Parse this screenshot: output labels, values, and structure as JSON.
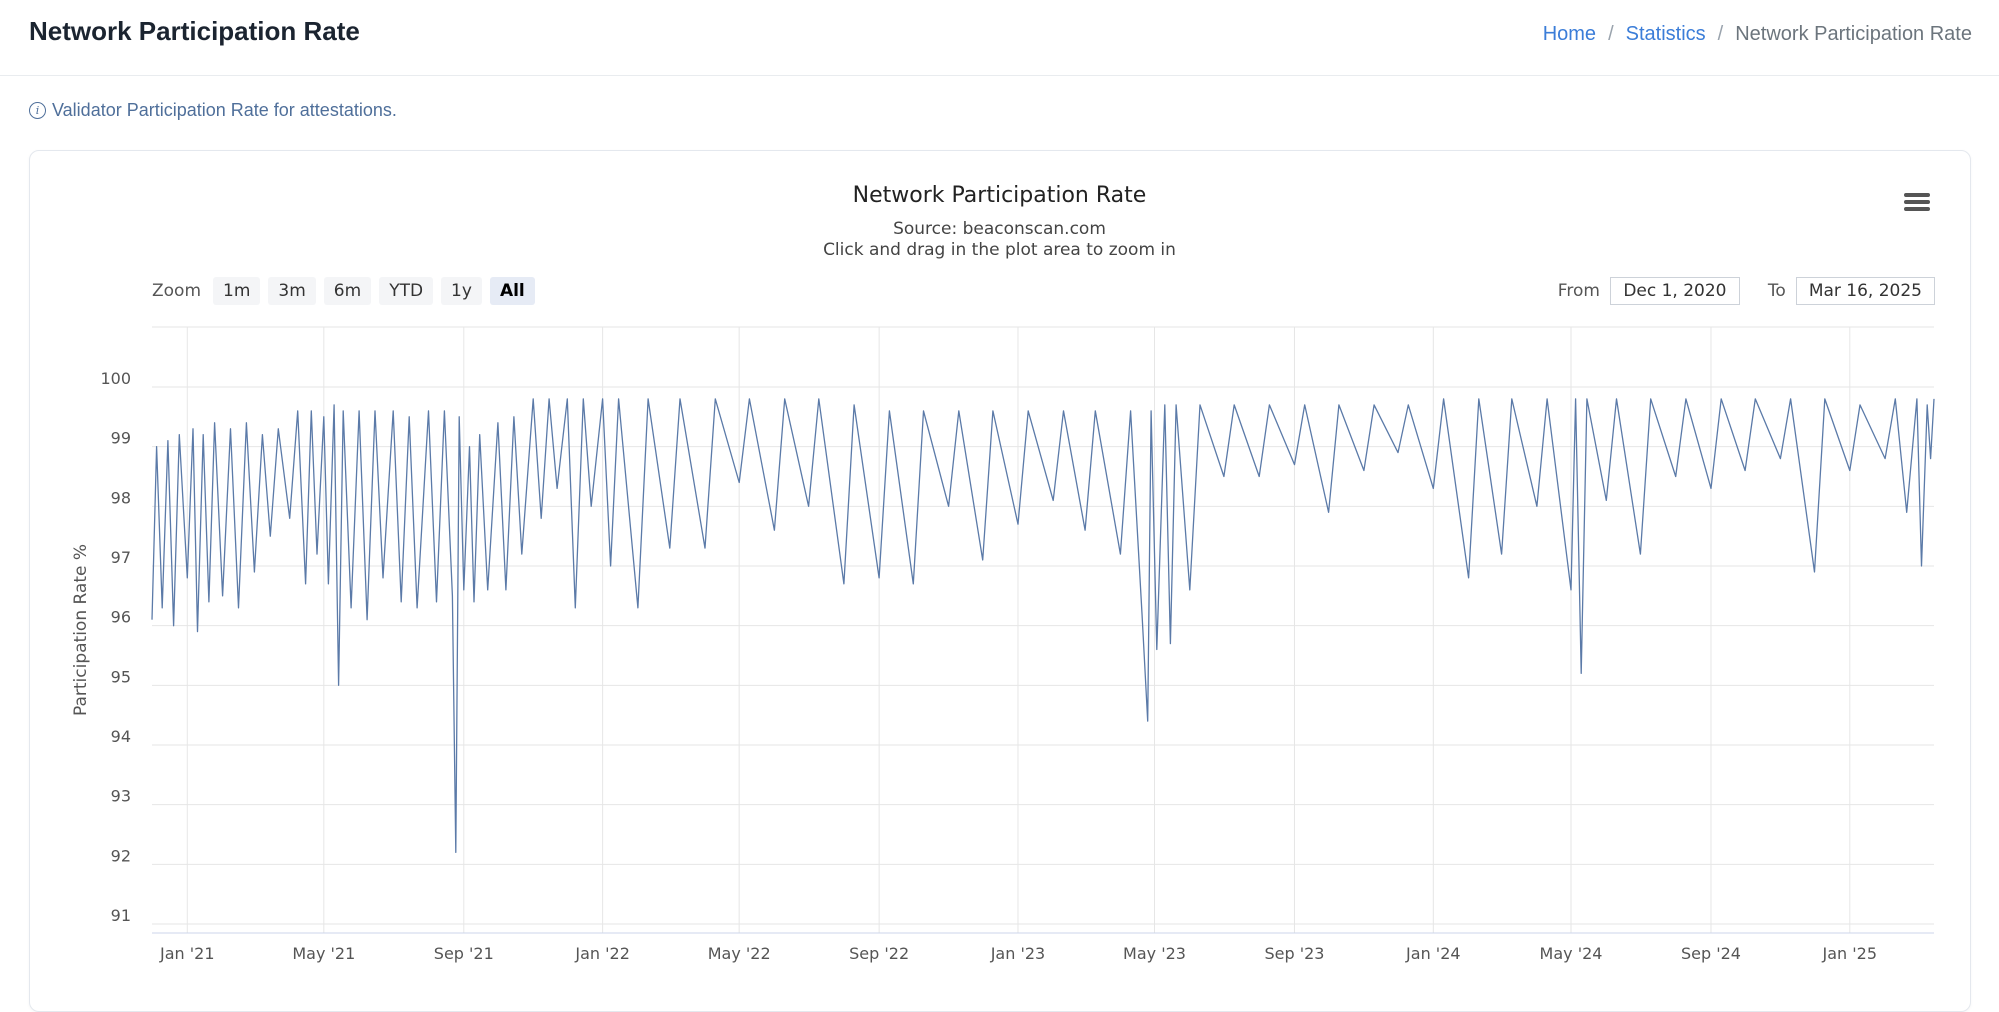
{
  "page": {
    "title": "Network Participation Rate",
    "info_text": "Validator Participation Rate for attestations."
  },
  "breadcrumb": {
    "home": "Home",
    "statistics": "Statistics",
    "current": "Network Participation Rate",
    "separator": "/"
  },
  "chart_header": {
    "title": "Network Participation Rate",
    "source": "Source: beaconscan.com",
    "hint": "Click and drag in the plot area to zoom in",
    "menu_icon": "hamburger-menu-icon"
  },
  "zoom": {
    "label": "Zoom",
    "buttons": [
      "1m",
      "3m",
      "6m",
      "YTD",
      "1y",
      "All"
    ],
    "active": "All"
  },
  "range": {
    "from_label": "From",
    "from_value": "Dec 1, 2020",
    "to_label": "To",
    "to_value": "Mar 16, 2025"
  },
  "colors": {
    "line": "#5b7aa8",
    "accent_link": "#3b7dd8",
    "grid": "#e6e6e6"
  },
  "chart_data": {
    "type": "line",
    "title": "Network Participation Rate",
    "subtitle": "Source: beaconscan.com",
    "xlabel": "",
    "ylabel": "Participation Rate %",
    "ylim": [
      91,
      100
    ],
    "y_ticks": [
      "91",
      "92",
      "93",
      "94",
      "95",
      "96",
      "97",
      "98",
      "99",
      "100"
    ],
    "x_range": [
      "2020-12-01",
      "2025-03-16"
    ],
    "x_ticks": [
      {
        "date": "2021-01-01",
        "label": "Jan '21"
      },
      {
        "date": "2021-05-01",
        "label": "May '21"
      },
      {
        "date": "2021-09-01",
        "label": "Sep '21"
      },
      {
        "date": "2022-01-01",
        "label": "Jan '22"
      },
      {
        "date": "2022-05-01",
        "label": "May '22"
      },
      {
        "date": "2022-09-01",
        "label": "Sep '22"
      },
      {
        "date": "2023-01-01",
        "label": "Jan '23"
      },
      {
        "date": "2023-05-01",
        "label": "May '23"
      },
      {
        "date": "2023-09-01",
        "label": "Sep '23"
      },
      {
        "date": "2024-01-01",
        "label": "Jan '24"
      },
      {
        "date": "2024-05-01",
        "label": "May '24"
      },
      {
        "date": "2024-09-01",
        "label": "Sep '24"
      },
      {
        "date": "2025-01-01",
        "label": "Jan '25"
      }
    ],
    "grid": true,
    "legend": "none",
    "series": [
      {
        "points": [
          [
            "2020-12-01",
            96.1
          ],
          [
            "2020-12-05",
            99.0
          ],
          [
            "2020-12-10",
            96.3
          ],
          [
            "2020-12-15",
            99.1
          ],
          [
            "2020-12-20",
            96.0
          ],
          [
            "2020-12-25",
            99.2
          ],
          [
            "2021-01-01",
            96.8
          ],
          [
            "2021-01-06",
            99.3
          ],
          [
            "2021-01-10",
            95.9
          ],
          [
            "2021-01-15",
            99.2
          ],
          [
            "2021-01-20",
            96.4
          ],
          [
            "2021-01-25",
            99.4
          ],
          [
            "2021-02-01",
            96.5
          ],
          [
            "2021-02-08",
            99.3
          ],
          [
            "2021-02-15",
            96.3
          ],
          [
            "2021-02-22",
            99.4
          ],
          [
            "2021-03-01",
            96.9
          ],
          [
            "2021-03-08",
            99.2
          ],
          [
            "2021-03-15",
            97.5
          ],
          [
            "2021-03-22",
            99.3
          ],
          [
            "2021-04-01",
            97.8
          ],
          [
            "2021-04-08",
            99.6
          ],
          [
            "2021-04-15",
            96.7
          ],
          [
            "2021-04-20",
            99.6
          ],
          [
            "2021-04-25",
            97.2
          ],
          [
            "2021-05-01",
            99.5
          ],
          [
            "2021-05-05",
            96.7
          ],
          [
            "2021-05-10",
            99.7
          ],
          [
            "2021-05-14",
            95.0
          ],
          [
            "2021-05-18",
            99.6
          ],
          [
            "2021-05-25",
            96.3
          ],
          [
            "2021-06-01",
            99.6
          ],
          [
            "2021-06-08",
            96.1
          ],
          [
            "2021-06-15",
            99.6
          ],
          [
            "2021-06-22",
            96.8
          ],
          [
            "2021-07-01",
            99.6
          ],
          [
            "2021-07-08",
            96.4
          ],
          [
            "2021-07-15",
            99.5
          ],
          [
            "2021-07-22",
            96.3
          ],
          [
            "2021-08-01",
            99.6
          ],
          [
            "2021-08-08",
            96.4
          ],
          [
            "2021-08-15",
            99.6
          ],
          [
            "2021-08-22",
            96.5
          ],
          [
            "2021-08-25",
            92.2
          ],
          [
            "2021-08-28",
            99.5
          ],
          [
            "2021-09-01",
            96.6
          ],
          [
            "2021-09-06",
            99.0
          ],
          [
            "2021-09-10",
            96.4
          ],
          [
            "2021-09-15",
            99.2
          ],
          [
            "2021-09-22",
            96.6
          ],
          [
            "2021-10-01",
            99.4
          ],
          [
            "2021-10-08",
            96.6
          ],
          [
            "2021-10-15",
            99.5
          ],
          [
            "2021-10-22",
            97.2
          ],
          [
            "2021-11-01",
            99.8
          ],
          [
            "2021-11-08",
            97.8
          ],
          [
            "2021-11-15",
            99.8
          ],
          [
            "2021-11-22",
            98.3
          ],
          [
            "2021-12-01",
            99.8
          ],
          [
            "2021-12-08",
            96.3
          ],
          [
            "2021-12-15",
            99.8
          ],
          [
            "2021-12-22",
            98.0
          ],
          [
            "2022-01-01",
            99.8
          ],
          [
            "2022-01-08",
            97.0
          ],
          [
            "2022-01-15",
            99.8
          ],
          [
            "2022-02-01",
            96.3
          ],
          [
            "2022-02-10",
            99.8
          ],
          [
            "2022-03-01",
            97.3
          ],
          [
            "2022-03-10",
            99.8
          ],
          [
            "2022-04-01",
            97.3
          ],
          [
            "2022-04-10",
            99.8
          ],
          [
            "2022-05-01",
            98.4
          ],
          [
            "2022-05-10",
            99.8
          ],
          [
            "2022-06-01",
            97.6
          ],
          [
            "2022-06-10",
            99.8
          ],
          [
            "2022-07-01",
            98.0
          ],
          [
            "2022-07-10",
            99.8
          ],
          [
            "2022-08-01",
            96.7
          ],
          [
            "2022-08-10",
            99.7
          ],
          [
            "2022-09-01",
            96.8
          ],
          [
            "2022-09-10",
            99.6
          ],
          [
            "2022-10-01",
            96.7
          ],
          [
            "2022-10-10",
            99.6
          ],
          [
            "2022-11-01",
            98.0
          ],
          [
            "2022-11-10",
            99.6
          ],
          [
            "2022-12-01",
            97.1
          ],
          [
            "2022-12-10",
            99.6
          ],
          [
            "2023-01-01",
            97.7
          ],
          [
            "2023-01-10",
            99.6
          ],
          [
            "2023-02-01",
            98.1
          ],
          [
            "2023-02-10",
            99.6
          ],
          [
            "2023-03-01",
            97.6
          ],
          [
            "2023-03-10",
            99.6
          ],
          [
            "2023-04-01",
            97.2
          ],
          [
            "2023-04-10",
            99.6
          ],
          [
            "2023-04-20",
            96.2
          ],
          [
            "2023-04-25",
            94.4
          ],
          [
            "2023-04-28",
            99.6
          ],
          [
            "2023-05-03",
            95.6
          ],
          [
            "2023-05-10",
            99.7
          ],
          [
            "2023-05-15",
            95.7
          ],
          [
            "2023-05-20",
            99.7
          ],
          [
            "2023-06-01",
            96.6
          ],
          [
            "2023-06-10",
            99.7
          ],
          [
            "2023-07-01",
            98.5
          ],
          [
            "2023-07-10",
            99.7
          ],
          [
            "2023-08-01",
            98.5
          ],
          [
            "2023-08-10",
            99.7
          ],
          [
            "2023-09-01",
            98.7
          ],
          [
            "2023-09-10",
            99.7
          ],
          [
            "2023-10-01",
            97.9
          ],
          [
            "2023-10-10",
            99.7
          ],
          [
            "2023-11-01",
            98.6
          ],
          [
            "2023-11-10",
            99.7
          ],
          [
            "2023-12-01",
            98.9
          ],
          [
            "2023-12-10",
            99.7
          ],
          [
            "2024-01-01",
            98.3
          ],
          [
            "2024-01-10",
            99.8
          ],
          [
            "2024-02-01",
            96.8
          ],
          [
            "2024-02-10",
            99.8
          ],
          [
            "2024-03-01",
            97.2
          ],
          [
            "2024-03-10",
            99.8
          ],
          [
            "2024-04-01",
            98.0
          ],
          [
            "2024-04-10",
            99.8
          ],
          [
            "2024-05-01",
            96.6
          ],
          [
            "2024-05-05",
            99.8
          ],
          [
            "2024-05-10",
            95.2
          ],
          [
            "2024-05-15",
            99.8
          ],
          [
            "2024-06-01",
            98.1
          ],
          [
            "2024-06-10",
            99.8
          ],
          [
            "2024-07-01",
            97.2
          ],
          [
            "2024-07-10",
            99.8
          ],
          [
            "2024-08-01",
            98.5
          ],
          [
            "2024-08-10",
            99.8
          ],
          [
            "2024-09-01",
            98.3
          ],
          [
            "2024-09-10",
            99.8
          ],
          [
            "2024-10-01",
            98.6
          ],
          [
            "2024-10-10",
            99.8
          ],
          [
            "2024-11-01",
            98.8
          ],
          [
            "2024-11-10",
            99.8
          ],
          [
            "2024-12-01",
            96.9
          ],
          [
            "2024-12-10",
            99.8
          ],
          [
            "2025-01-01",
            98.6
          ],
          [
            "2025-01-10",
            99.7
          ],
          [
            "2025-02-01",
            98.8
          ],
          [
            "2025-02-10",
            99.8
          ],
          [
            "2025-02-20",
            97.9
          ],
          [
            "2025-03-01",
            99.8
          ],
          [
            "2025-03-05",
            97.0
          ],
          [
            "2025-03-10",
            99.7
          ],
          [
            "2025-03-13",
            98.8
          ],
          [
            "2025-03-16",
            99.8
          ]
        ]
      }
    ]
  }
}
